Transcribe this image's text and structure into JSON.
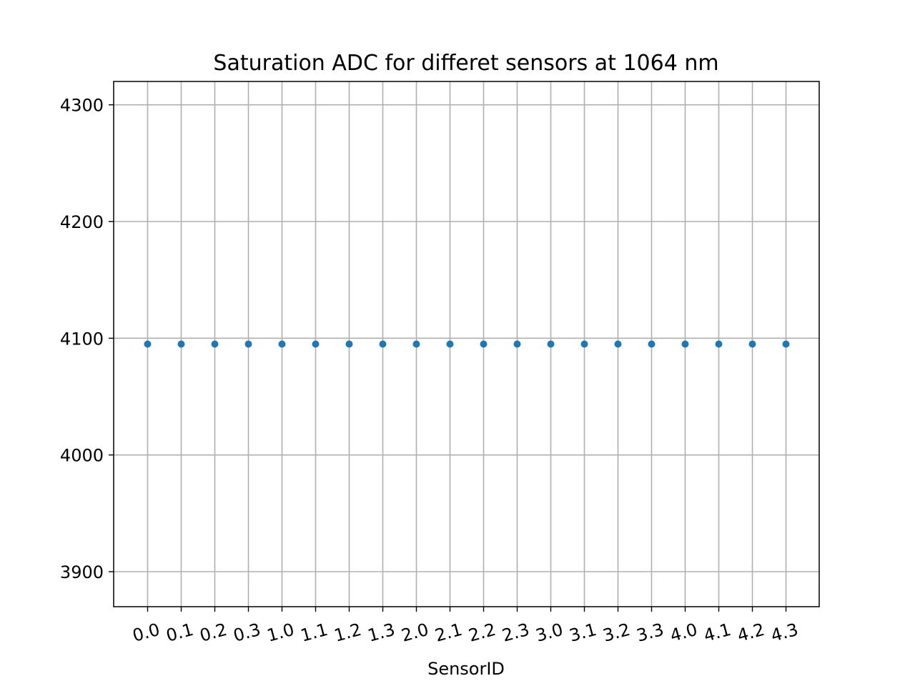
{
  "chart_data": {
    "type": "scatter",
    "title": "Saturation ADC for differet sensors at 1064 nm",
    "xlabel": "SensorID",
    "ylabel": "",
    "categories": [
      "0.0",
      "0.1",
      "0.2",
      "0.3",
      "1.0",
      "1.1",
      "1.2",
      "1.3",
      "2.0",
      "2.1",
      "2.2",
      "2.3",
      "3.0",
      "3.1",
      "3.2",
      "3.3",
      "4.0",
      "4.1",
      "4.2",
      "4.3"
    ],
    "values": [
      4095,
      4095,
      4095,
      4095,
      4095,
      4095,
      4095,
      4095,
      4095,
      4095,
      4095,
      4095,
      4095,
      4095,
      4095,
      4095,
      4095,
      4095,
      4095,
      4095
    ],
    "ylim": [
      3870,
      4320
    ],
    "yticks": [
      3900,
      4000,
      4100,
      4200,
      4300
    ],
    "grid": true,
    "marker_color": "#1f77b4",
    "grid_color": "#b0b0b0"
  }
}
